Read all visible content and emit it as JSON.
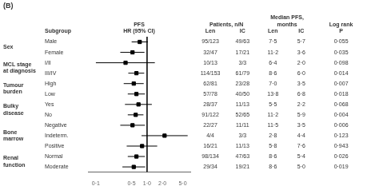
{
  "chart_data": {
    "type": "forest",
    "title": "(B)",
    "log": "x",
    "xlim": [
      0.07,
      7.0
    ],
    "xticks": [
      {
        "value": 0.1,
        "label": "0·1"
      },
      {
        "value": 0.5,
        "label": "0·5"
      },
      {
        "value": 1.0,
        "label": "1·0"
      },
      {
        "value": 2.0,
        "label": "2·0"
      },
      {
        "value": 5.0,
        "label": "5·0"
      }
    ],
    "tick_labels": "x",
    "grid": false,
    "vline": 1.0,
    "color": "#000000",
    "marker": "square",
    "label_header": "Subgroup",
    "plot_header": [
      "PFS",
      "HR (95% CI)"
    ],
    "groups": [
      "Sex",
      null,
      "MCL stage\nat diagnosis",
      null,
      "Tumour\nburden",
      null,
      "Bulky\ndisease",
      null,
      "Bone\nmarrow",
      null,
      null,
      "Renal\nfunction",
      null
    ],
    "categories": [
      "Male",
      "Female",
      "I/II",
      "III/IV",
      "High",
      "Low",
      "Yes",
      "No",
      "Negative",
      "Indeterm.",
      "Positive",
      "Normal",
      "Moderate"
    ],
    "values": [
      0.72,
      0.52,
      0.38,
      0.62,
      0.55,
      0.62,
      0.68,
      0.6,
      0.52,
      2.2,
      0.8,
      0.62,
      0.55
    ],
    "ci_lo": [
      0.5,
      0.3,
      0.1,
      0.43,
      0.35,
      0.42,
      0.37,
      0.42,
      0.3,
      0.78,
      0.4,
      0.42,
      0.33
    ],
    "ci_hi": [
      1.04,
      0.89,
      1.42,
      0.88,
      0.86,
      0.91,
      1.24,
      0.85,
      0.91,
      6.22,
      1.58,
      0.91,
      0.92
    ],
    "column_groups": [
      {
        "header": [
          "Patients, n/N"
        ],
        "columns": [
          {
            "header": "Len",
            "values": [
              "95/123",
              "32/47",
              "10/13",
              "114/153",
              "62/81",
              "57/78",
              "28/37",
              "91/122",
              "22/27",
              "4/4",
              "16/21",
              "98/134",
              "29/34"
            ]
          },
          {
            "header": "IC",
            "values": [
              "49/63",
              "17/21",
              "3/3",
              "61/79",
              "23/28",
              "40/50",
              "11/13",
              "52/65",
              "11/11",
              "3/3",
              "11/13",
              "47/63",
              "19/21"
            ]
          }
        ]
      },
      {
        "header": [
          "Median PFS,",
          "months"
        ],
        "columns": [
          {
            "header": "Len",
            "values": [
              "7·5",
              "11·2",
              "6·4",
              "8·6",
              "7·0",
              "13·8",
              "5·5",
              "11·2",
              "11·5",
              "2·8",
              "5·8",
              "8·6",
              "8·6"
            ]
          },
          {
            "header": "IC",
            "values": [
              "5·7",
              "3·6",
              "2·0",
              "6·0",
              "3·5",
              "6·8",
              "2·2",
              "5·9",
              "3·5",
              "4·4",
              "7·6",
              "5·4",
              "5·0"
            ]
          }
        ]
      },
      {
        "header": [
          "Log rank"
        ],
        "columns": [
          {
            "header": "P",
            "values": [
              "0·055",
              "0·035",
              "0·098",
              "0·014",
              "0·007",
              "0·018",
              "0·068",
              "0·004",
              "0·006",
              "0·123",
              "0·943",
              "0·026",
              "0·019"
            ]
          }
        ]
      }
    ]
  }
}
